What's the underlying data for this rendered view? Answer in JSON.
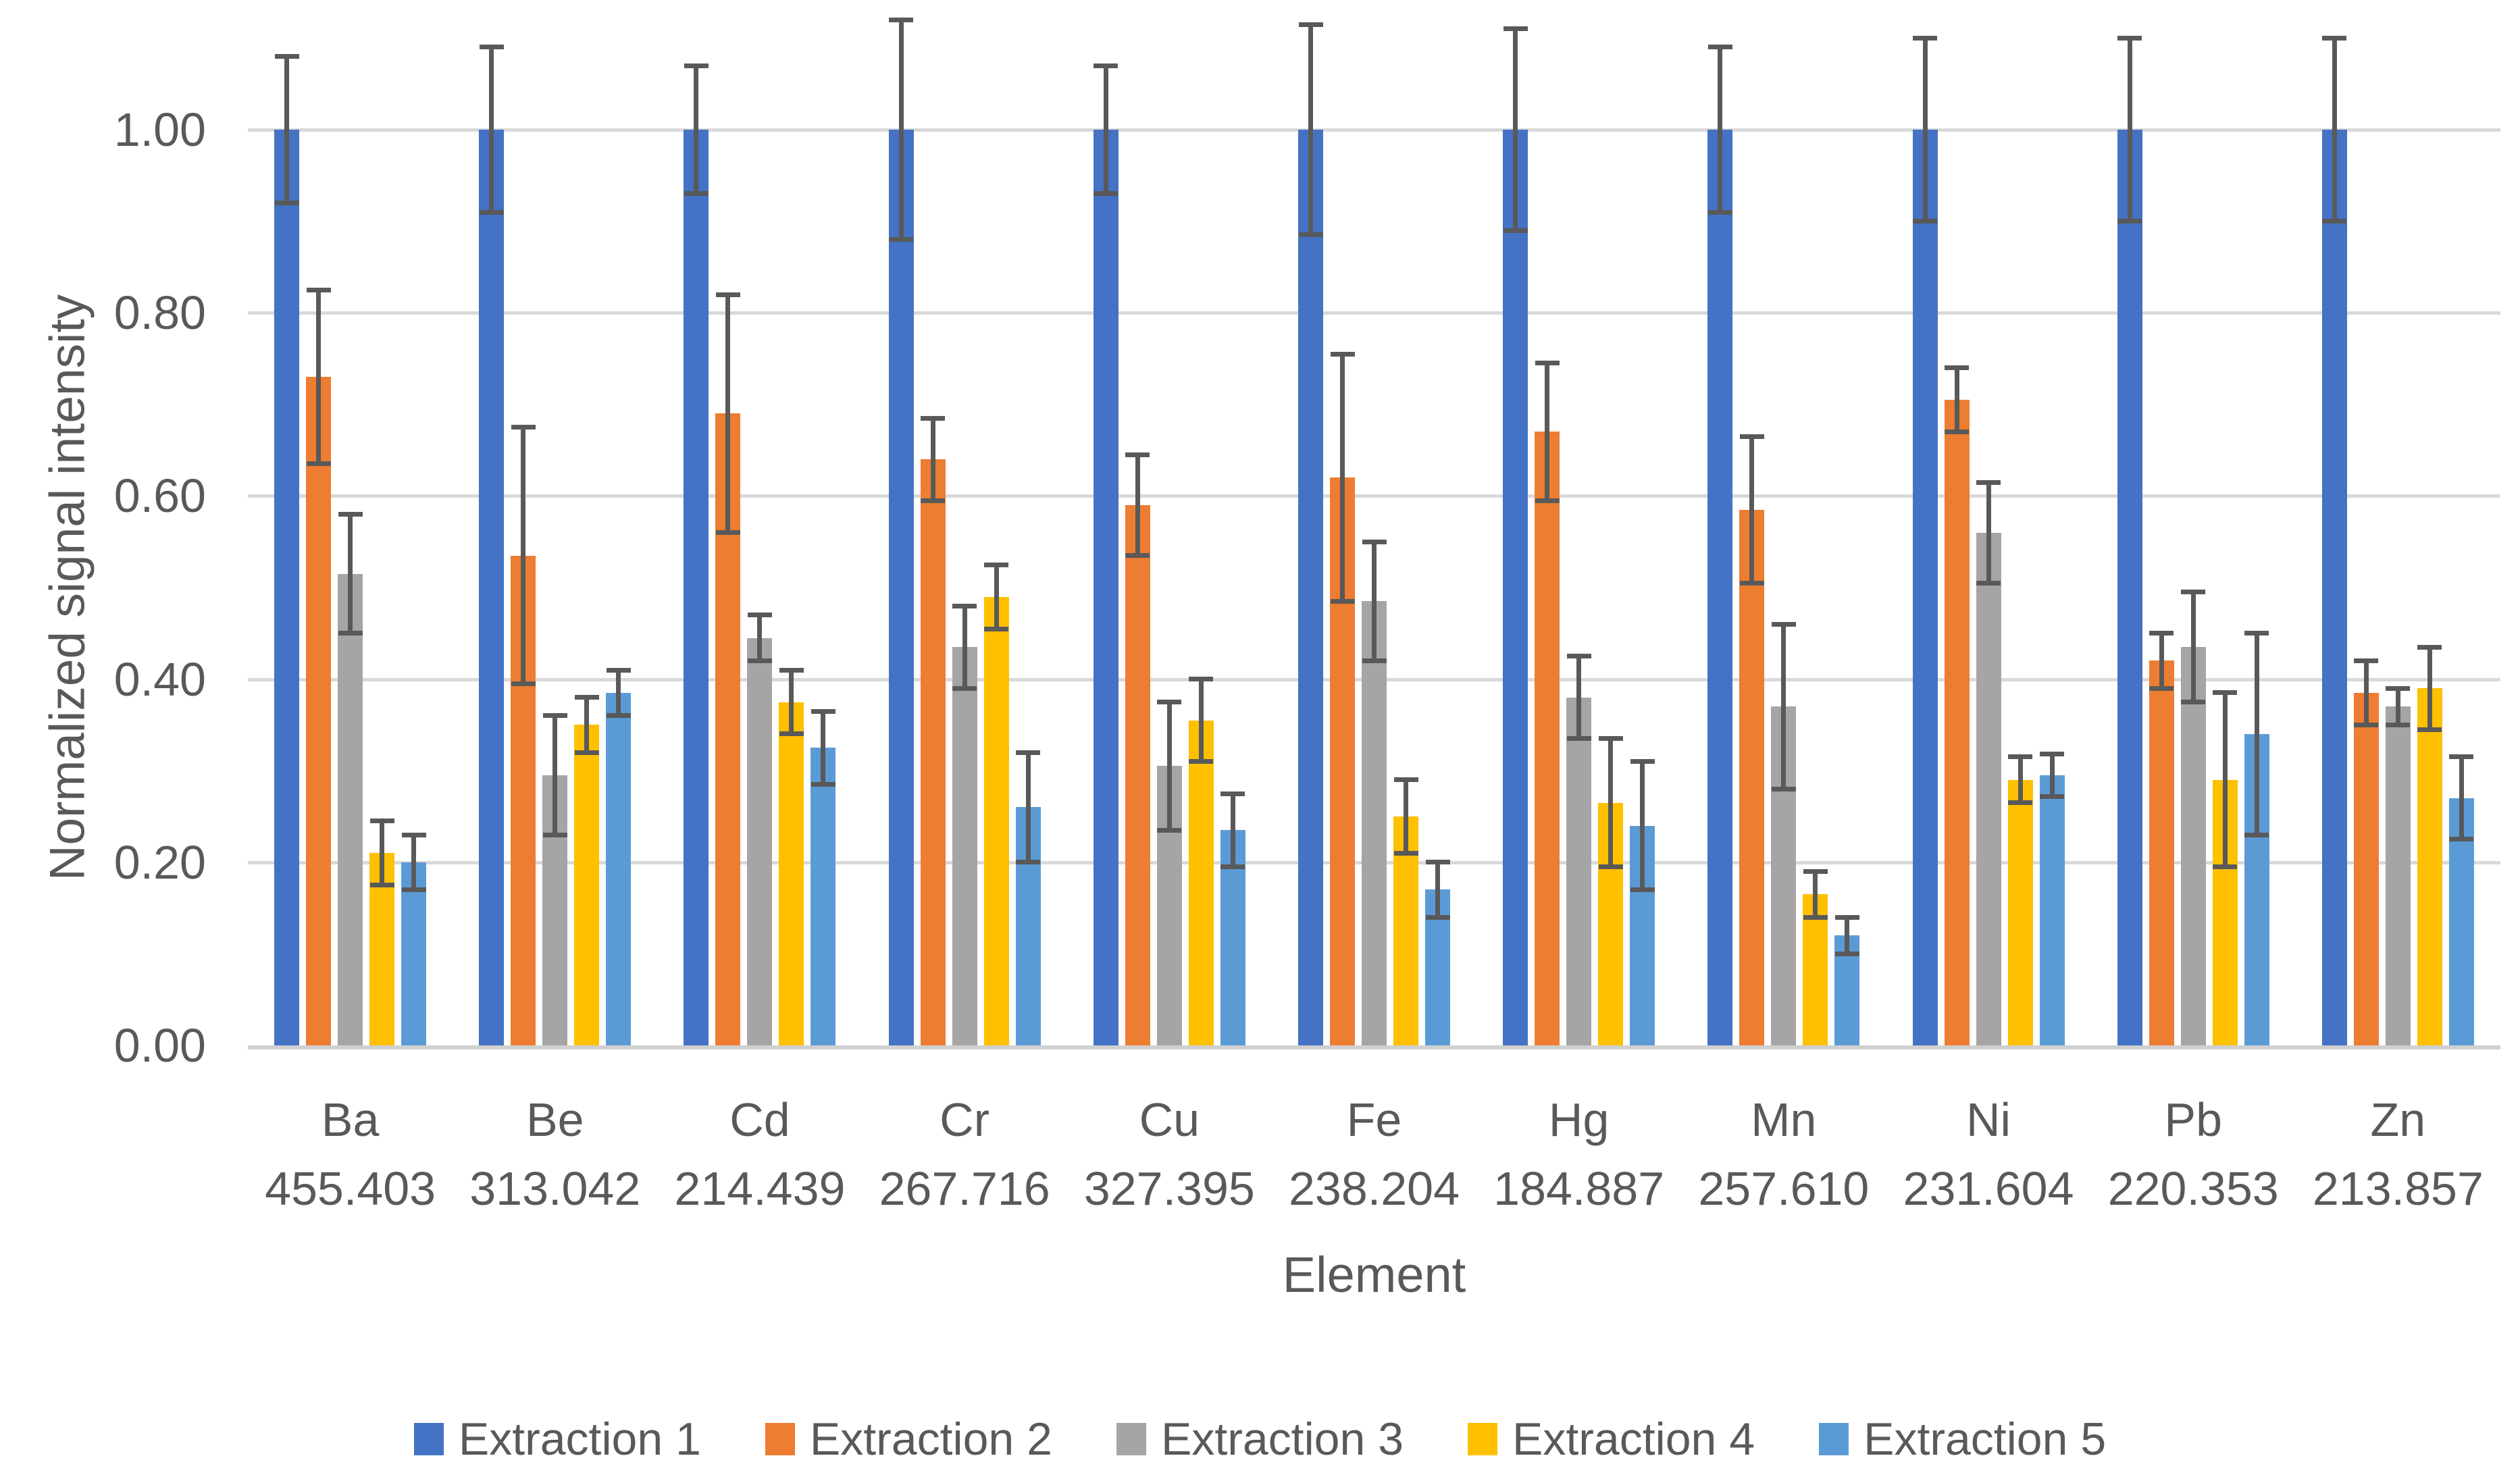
{
  "figure": {
    "background": "#FFFFFF",
    "text_color": "#595959",
    "gridline_color": "#D9D9D9",
    "axis_line_color": "#D0D0D0",
    "error_bar_color": "#595959"
  },
  "chart_data": {
    "type": "bar",
    "title": "",
    "xlabel": "Element",
    "ylabel": "Normalized signal intensity",
    "ylim": [
      0,
      1.0
    ],
    "yticks": [
      "0.00",
      "0.20",
      "0.40",
      "0.60",
      "0.80",
      "1.00"
    ],
    "ytick_values": [
      0.0,
      0.2,
      0.4,
      0.6,
      0.8,
      1.0
    ],
    "grid": "horizontal",
    "legend_position": "bottom",
    "error_bars": true,
    "categories": [
      {
        "element": "Ba",
        "wavelength": "455.403"
      },
      {
        "element": "Be",
        "wavelength": "313.042"
      },
      {
        "element": "Cd",
        "wavelength": "214.439"
      },
      {
        "element": "Cr",
        "wavelength": "267.716"
      },
      {
        "element": "Cu",
        "wavelength": "327.395"
      },
      {
        "element": "Fe",
        "wavelength": "238.204"
      },
      {
        "element": "Hg",
        "wavelength": "184.887"
      },
      {
        "element": "Mn",
        "wavelength": "257.610"
      },
      {
        "element": "Ni",
        "wavelength": "231.604"
      },
      {
        "element": "Pb",
        "wavelength": "220.353"
      },
      {
        "element": "Zn",
        "wavelength": "213.857"
      }
    ],
    "series": [
      {
        "name": "Extraction 1",
        "color": "#4472C4",
        "values": [
          1.0,
          1.0,
          1.0,
          1.0,
          1.0,
          1.0,
          1.0,
          1.0,
          1.0,
          1.0,
          1.0
        ],
        "errors": [
          0.08,
          0.09,
          0.07,
          0.12,
          0.07,
          0.115,
          0.11,
          0.09,
          0.1,
          0.1,
          0.1
        ]
      },
      {
        "name": "Extraction 2",
        "color": "#ED7D31",
        "values": [
          0.73,
          0.535,
          0.69,
          0.64,
          0.59,
          0.62,
          0.67,
          0.585,
          0.705,
          0.42,
          0.385
        ],
        "errors": [
          0.095,
          0.14,
          0.13,
          0.045,
          0.055,
          0.135,
          0.075,
          0.08,
          0.035,
          0.03,
          0.035
        ]
      },
      {
        "name": "Extraction 3",
        "color": "#A5A5A5",
        "values": [
          0.515,
          0.295,
          0.445,
          0.435,
          0.305,
          0.485,
          0.38,
          0.37,
          0.56,
          0.435,
          0.37
        ],
        "errors": [
          0.065,
          0.065,
          0.025,
          0.045,
          0.07,
          0.065,
          0.045,
          0.09,
          0.055,
          0.06,
          0.02
        ]
      },
      {
        "name": "Extraction 4",
        "color": "#FFC000",
        "values": [
          0.21,
          0.35,
          0.375,
          0.49,
          0.355,
          0.25,
          0.265,
          0.165,
          0.29,
          0.29,
          0.39
        ],
        "errors": [
          0.035,
          0.03,
          0.035,
          0.035,
          0.045,
          0.04,
          0.07,
          0.025,
          0.025,
          0.095,
          0.045
        ]
      },
      {
        "name": "Extraction 5",
        "color": "#5B9BD5",
        "values": [
          0.2,
          0.385,
          0.325,
          0.26,
          0.235,
          0.17,
          0.24,
          0.12,
          0.295,
          0.34,
          0.27
        ],
        "errors": [
          0.03,
          0.025,
          0.04,
          0.06,
          0.04,
          0.03,
          0.07,
          0.02,
          0.023,
          0.11,
          0.045
        ]
      }
    ]
  }
}
